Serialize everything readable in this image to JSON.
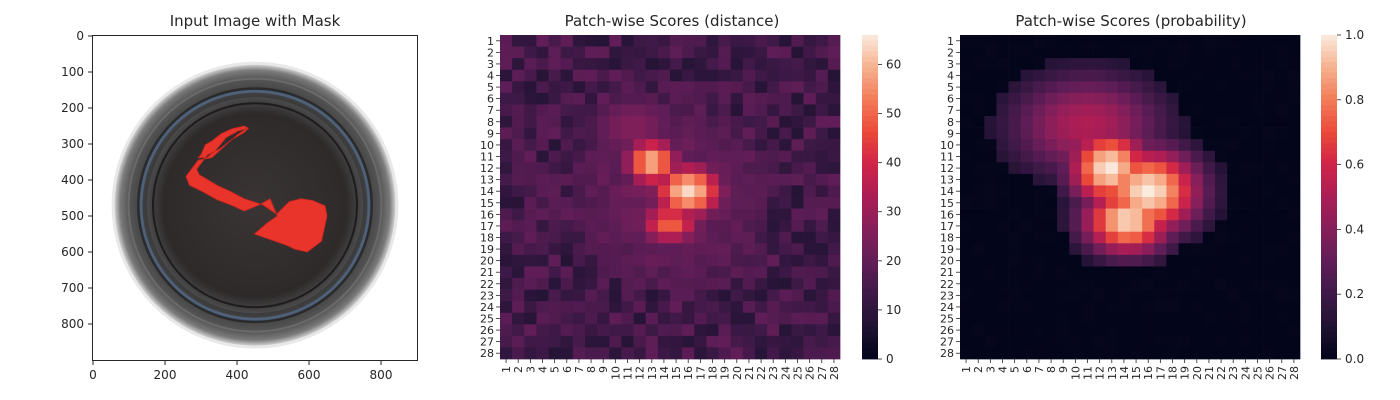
{
  "chart_data": [
    {
      "type": "image",
      "title": "Input Image with Mask",
      "x_ticks": [
        0,
        200,
        400,
        600,
        800
      ],
      "y_ticks": [
        0,
        100,
        200,
        300,
        400,
        500,
        600,
        700,
        800
      ],
      "xlim": [
        0,
        900
      ],
      "ylim": [
        900,
        0
      ],
      "image": {
        "subject": "top-down photo of a dark jar lid with a red segmentation mask",
        "lid_center": [
          450,
          470
        ],
        "lid_outer_radius": 390,
        "lid_inner_radius": 300,
        "mask_color": "#e8342b",
        "mask_polygon": [
          [
            420,
            250
          ],
          [
            385,
            258
          ],
          [
            355,
            272
          ],
          [
            330,
            292
          ],
          [
            312,
            302
          ],
          [
            300,
            330
          ],
          [
            292,
            338
          ],
          [
            316,
            338
          ],
          [
            340,
            318
          ],
          [
            370,
            282
          ],
          [
            405,
            263
          ],
          [
            425,
            258
          ],
          [
            400,
            275
          ],
          [
            330,
            338
          ],
          [
            292,
            345
          ],
          [
            258,
            390
          ],
          [
            268,
            415
          ],
          [
            290,
            425
          ],
          [
            318,
            440
          ],
          [
            345,
            455
          ],
          [
            385,
            470
          ],
          [
            420,
            486
          ],
          [
            460,
            470
          ],
          [
            492,
            452
          ],
          [
            512,
            500
          ],
          [
            483,
            520
          ],
          [
            448,
            550
          ],
          [
            540,
            582
          ],
          [
            560,
            592
          ],
          [
            595,
            600
          ],
          [
            635,
            570
          ],
          [
            650,
            500
          ],
          [
            645,
            472
          ],
          [
            610,
            457
          ],
          [
            578,
            452
          ],
          [
            545,
            460
          ],
          [
            510,
            495
          ],
          [
            470,
            468
          ],
          [
            420,
            452
          ],
          [
            382,
            432
          ],
          [
            345,
            415
          ],
          [
            320,
            400
          ],
          [
            295,
            385
          ],
          [
            288,
            370
          ],
          [
            318,
            330
          ],
          [
            350,
            315
          ],
          [
            385,
            288
          ],
          [
            420,
            268
          ],
          [
            432,
            256
          ]
        ]
      }
    },
    {
      "type": "heatmap",
      "title": "Patch-wise Scores (distance)",
      "rows": 28,
      "cols": 28,
      "row_labels": [
        "1",
        "2",
        "3",
        "4",
        "5",
        "6",
        "7",
        "8",
        "9",
        "10",
        "11",
        "12",
        "13",
        "14",
        "15",
        "16",
        "17",
        "18",
        "19",
        "20",
        "21",
        "22",
        "23",
        "24",
        "25",
        "26",
        "27",
        "28"
      ],
      "col_labels": [
        "1",
        "2",
        "3",
        "4",
        "5",
        "6",
        "7",
        "8",
        "9",
        "10",
        "11",
        "12",
        "13",
        "14",
        "15",
        "16",
        "17",
        "18",
        "19",
        "20",
        "21",
        "22",
        "23",
        "24",
        "25",
        "26",
        "27",
        "28"
      ],
      "colormap": "rocket",
      "vmin": 0,
      "vmax": 66,
      "colorbar_ticks": [
        0,
        10,
        20,
        30,
        40,
        50,
        60
      ],
      "model": {
        "background": 14,
        "background_jitter": 6,
        "halo": {
          "center_row": 14.5,
          "center_col": 14.5,
          "radius": 8,
          "level": 24
        },
        "blobs": [
          {
            "row": 11.5,
            "col": 13.0,
            "sigma_row": 1.6,
            "sigma_col": 1.7,
            "peak": 60
          },
          {
            "row": 14.0,
            "col": 16.0,
            "sigma_row": 1.8,
            "sigma_col": 2.2,
            "peak": 64
          },
          {
            "row": 16.8,
            "col": 14.5,
            "sigma_row": 1.4,
            "sigma_col": 2.0,
            "peak": 50
          },
          {
            "row": 8.5,
            "col": 11.5,
            "sigma_row": 2.8,
            "sigma_col": 3.5,
            "peak": 26
          }
        ]
      }
    },
    {
      "type": "heatmap",
      "title": "Patch-wise Scores (probability)",
      "rows": 28,
      "cols": 28,
      "row_labels": [
        "1",
        "2",
        "3",
        "4",
        "5",
        "6",
        "7",
        "8",
        "9",
        "10",
        "11",
        "12",
        "13",
        "14",
        "15",
        "16",
        "17",
        "18",
        "19",
        "20",
        "21",
        "22",
        "23",
        "24",
        "25",
        "26",
        "27",
        "28"
      ],
      "col_labels": [
        "1",
        "2",
        "3",
        "4",
        "5",
        "6",
        "7",
        "8",
        "9",
        "10",
        "11",
        "12",
        "13",
        "14",
        "15",
        "16",
        "17",
        "18",
        "19",
        "20",
        "21",
        "22",
        "23",
        "24",
        "25",
        "26",
        "27",
        "28"
      ],
      "colormap": "rocket",
      "vmin": 0,
      "vmax": 1,
      "colorbar_ticks": [
        "0.0",
        "0.2",
        "0.4",
        "0.6",
        "0.8",
        "1.0"
      ],
      "model": {
        "background": 0.0,
        "background_jitter": 0.01,
        "blobs": [
          {
            "row": 12.0,
            "col": 12.8,
            "sigma_row": 1.8,
            "sigma_col": 1.8,
            "peak": 1.0
          },
          {
            "row": 14.0,
            "col": 16.0,
            "sigma_row": 2.0,
            "sigma_col": 2.3,
            "peak": 1.0
          },
          {
            "row": 16.5,
            "col": 14.3,
            "sigma_row": 1.6,
            "sigma_col": 2.0,
            "peak": 0.95
          },
          {
            "row": 8.3,
            "col": 11.0,
            "sigma_row": 2.5,
            "sigma_col": 3.5,
            "peak": 0.3
          }
        ],
        "gamma": 0.55
      }
    }
  ]
}
